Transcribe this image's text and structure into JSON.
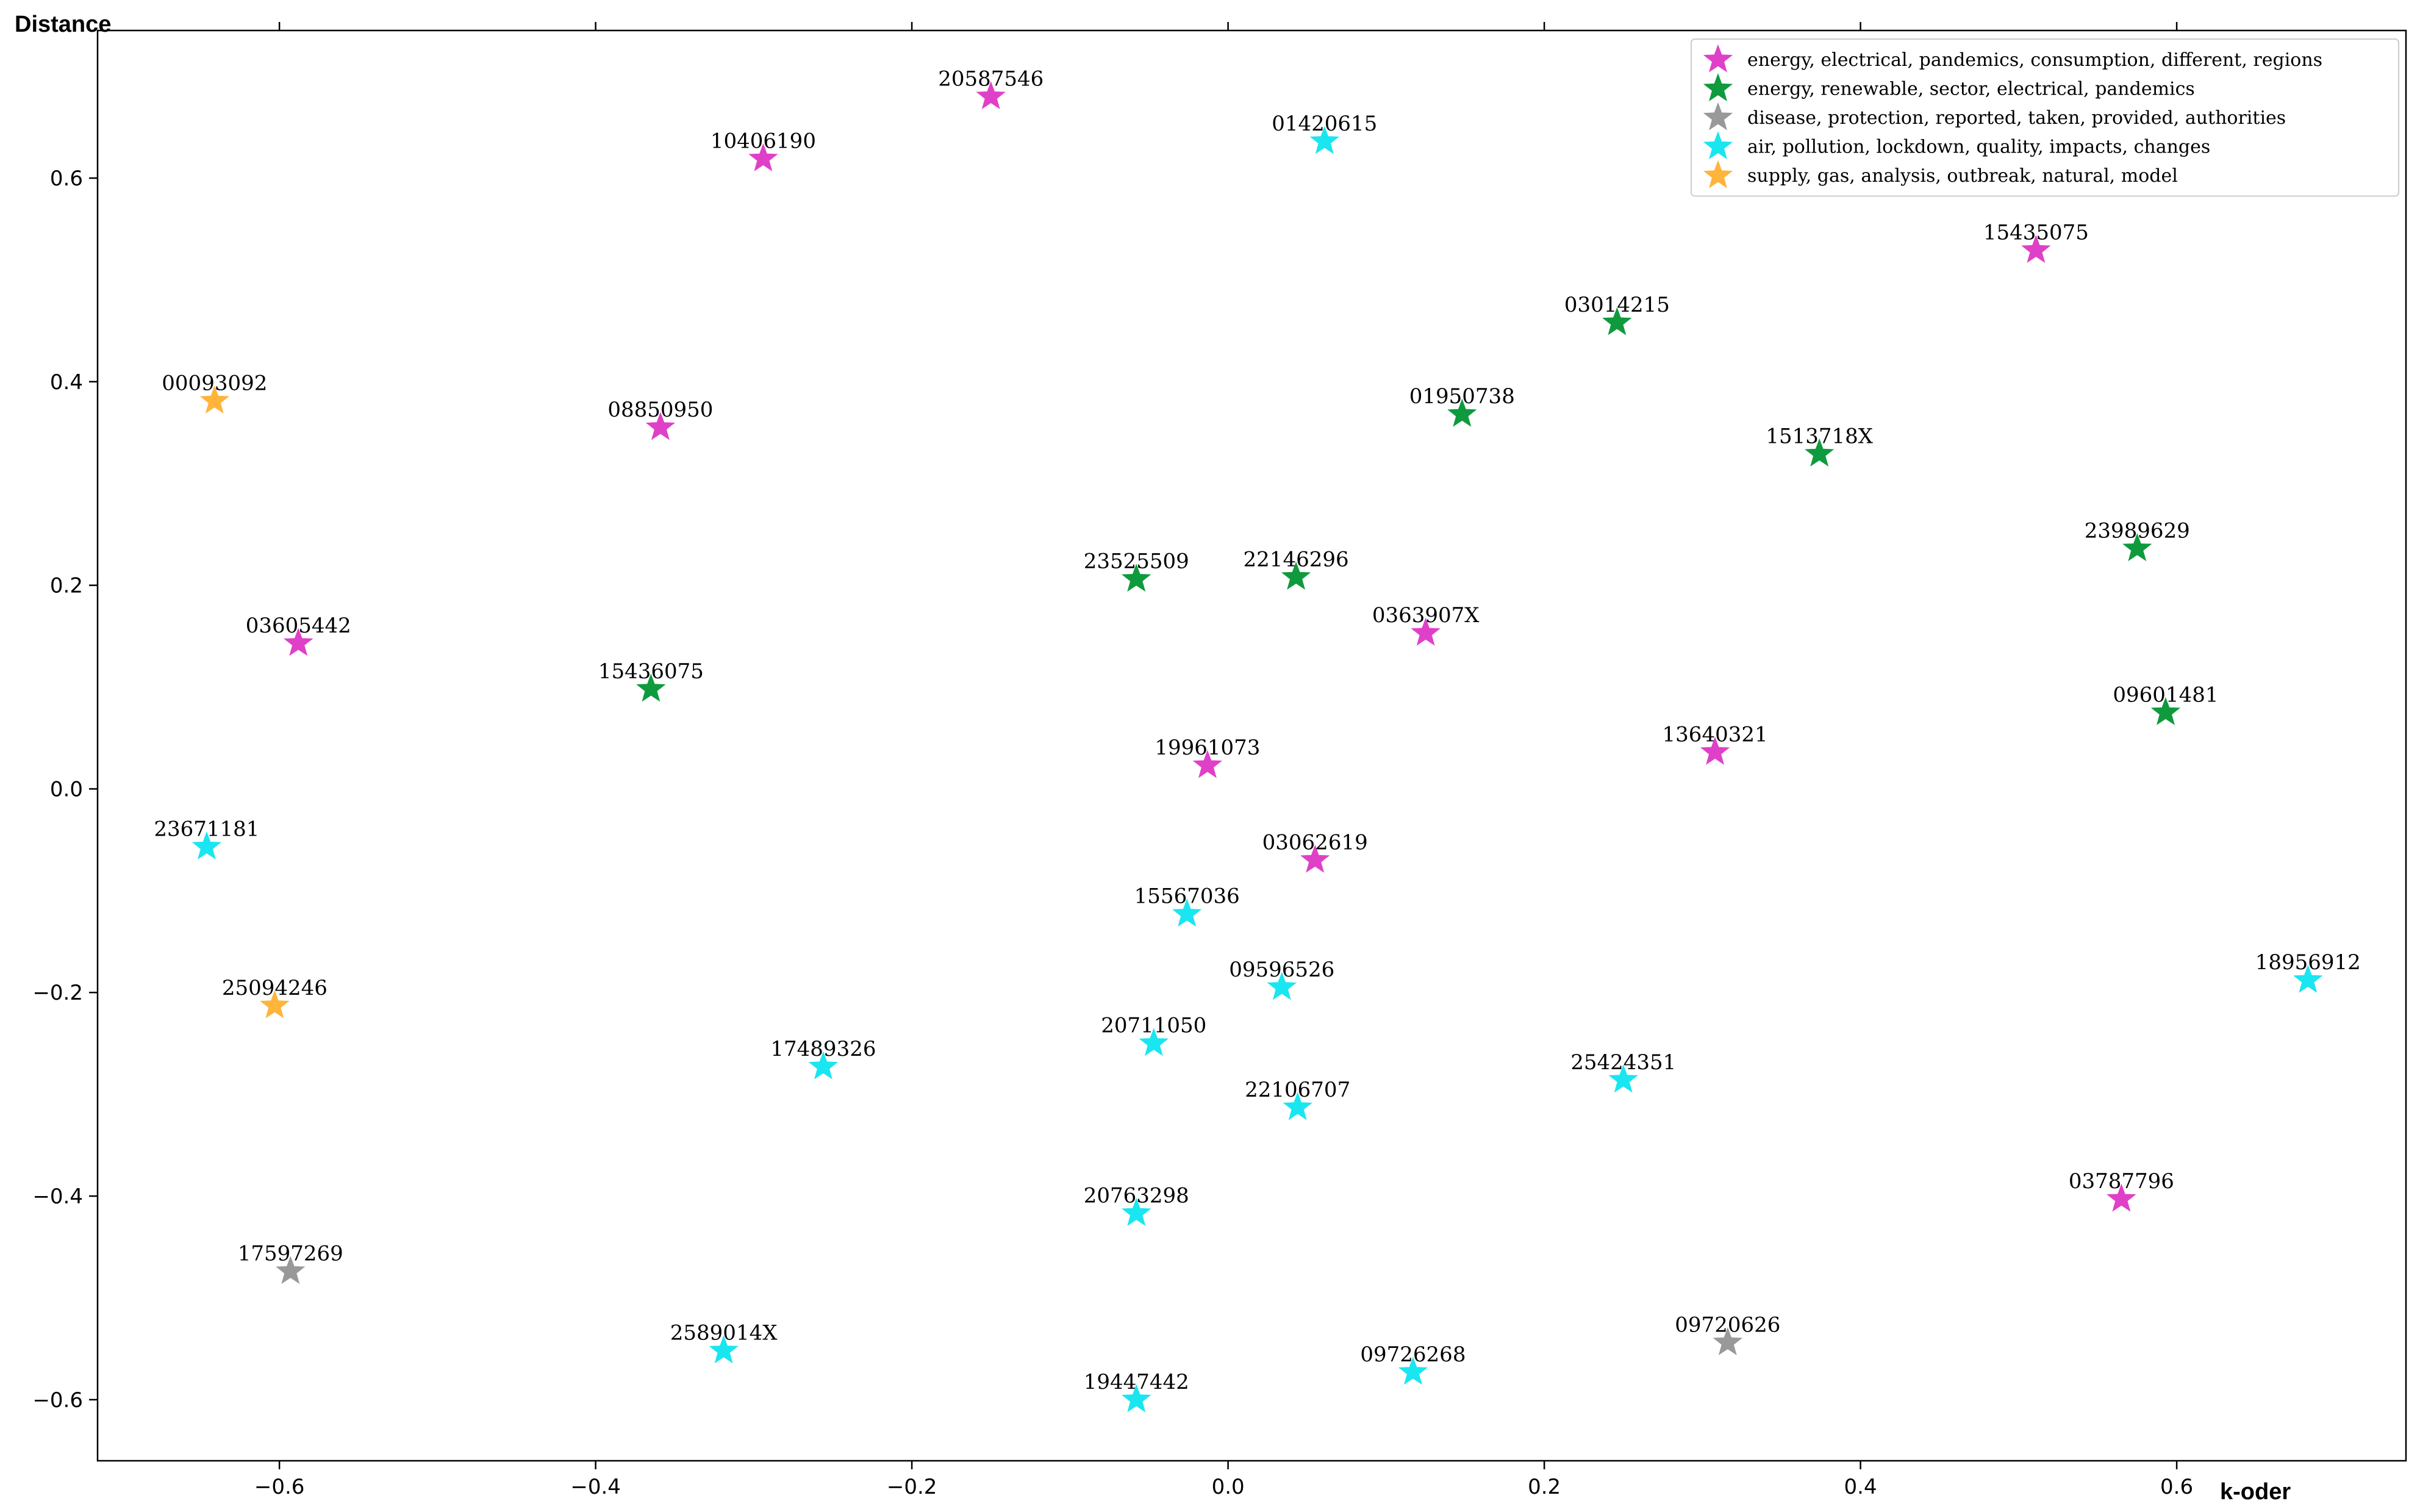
{
  "chart_data": {
    "type": "scatter",
    "title": "",
    "xlabel": "k-oder",
    "ylabel": "Distance",
    "xlim": [
      -0.715,
      0.745
    ],
    "ylim": [
      -0.66,
      0.745
    ],
    "xticks": [
      -0.6,
      -0.4,
      -0.2,
      0.0,
      0.2,
      0.4,
      0.6
    ],
    "xtick_labels": [
      "−0.6",
      "−0.4",
      "−0.2",
      "0.0",
      "0.2",
      "0.4",
      "0.6"
    ],
    "yticks": [
      0.6,
      0.4,
      0.2,
      0.0,
      -0.2,
      -0.4,
      -0.6
    ],
    "ytick_labels": [
      "0.6",
      "0.4",
      "0.2",
      "0.0",
      "−0.2",
      "−0.4",
      "−0.6"
    ],
    "legend_position": "top-right",
    "marker": "star",
    "series": [
      {
        "name": "energy, electrical, pandemics, consumption, different, regions",
        "color": "#e040c8",
        "points": [
          {
            "label": "20587546",
            "x": -0.15,
            "y": 0.68
          },
          {
            "label": "10406190",
            "x": -0.294,
            "y": 0.619
          },
          {
            "label": "08850950",
            "x": -0.359,
            "y": 0.355
          },
          {
            "label": "03605442",
            "x": -0.588,
            "y": 0.143
          },
          {
            "label": "0363907X",
            "x": 0.125,
            "y": 0.153
          },
          {
            "label": "19961073",
            "x": -0.013,
            "y": 0.023
          },
          {
            "label": "13640321",
            "x": 0.308,
            "y": 0.036
          },
          {
            "label": "03062619",
            "x": 0.055,
            "y": -0.07
          },
          {
            "label": "15435075",
            "x": 0.511,
            "y": 0.529
          },
          {
            "label": "03787796",
            "x": 0.565,
            "y": -0.403
          }
        ]
      },
      {
        "name": "energy, renewable, sector, electrical, pandemics",
        "color": "#0f9a3e",
        "points": [
          {
            "label": "03014215",
            "x": 0.246,
            "y": 0.458
          },
          {
            "label": "01950738",
            "x": 0.148,
            "y": 0.368
          },
          {
            "label": "1513718X",
            "x": 0.374,
            "y": 0.329
          },
          {
            "label": "23989629",
            "x": 0.575,
            "y": 0.236
          },
          {
            "label": "23525509",
            "x": -0.058,
            "y": 0.206
          },
          {
            "label": "22146296",
            "x": 0.043,
            "y": 0.208
          },
          {
            "label": "15436075",
            "x": -0.365,
            "y": 0.098
          },
          {
            "label": "09601481",
            "x": 0.593,
            "y": 0.075
          }
        ]
      },
      {
        "name": "disease, protection, reported, taken, provided, authorities",
        "color": "#999999",
        "points": [
          {
            "label": "17597269",
            "x": -0.593,
            "y": -0.474
          },
          {
            "label": "09720626",
            "x": 0.316,
            "y": -0.544
          }
        ]
      },
      {
        "name": "air, pollution, lockdown, quality, impacts, changes",
        "color": "#19e6f0",
        "points": [
          {
            "label": "01420615",
            "x": 0.061,
            "y": 0.636
          },
          {
            "label": "23671181",
            "x": -0.646,
            "y": -0.057
          },
          {
            "label": "15567036",
            "x": -0.026,
            "y": -0.123
          },
          {
            "label": "09596526",
            "x": 0.034,
            "y": -0.195
          },
          {
            "label": "18956912",
            "x": 0.683,
            "y": -0.188
          },
          {
            "label": "20711050",
            "x": -0.047,
            "y": -0.25
          },
          {
            "label": "17489326",
            "x": -0.256,
            "y": -0.273
          },
          {
            "label": "22106707",
            "x": 0.044,
            "y": -0.313
          },
          {
            "label": "25424351",
            "x": 0.25,
            "y": -0.286
          },
          {
            "label": "20763298",
            "x": -0.058,
            "y": -0.417
          },
          {
            "label": "2589014X",
            "x": -0.319,
            "y": -0.552
          },
          {
            "label": "19447442",
            "x": -0.058,
            "y": -0.6
          },
          {
            "label": "09726268",
            "x": 0.117,
            "y": -0.573
          }
        ]
      },
      {
        "name": "supply, gas, analysis, outbreak, natural, model",
        "color": "#ffb43c",
        "points": [
          {
            "label": "00093092",
            "x": -0.641,
            "y": 0.381
          },
          {
            "label": "25094246",
            "x": -0.603,
            "y": -0.213
          }
        ]
      }
    ]
  }
}
